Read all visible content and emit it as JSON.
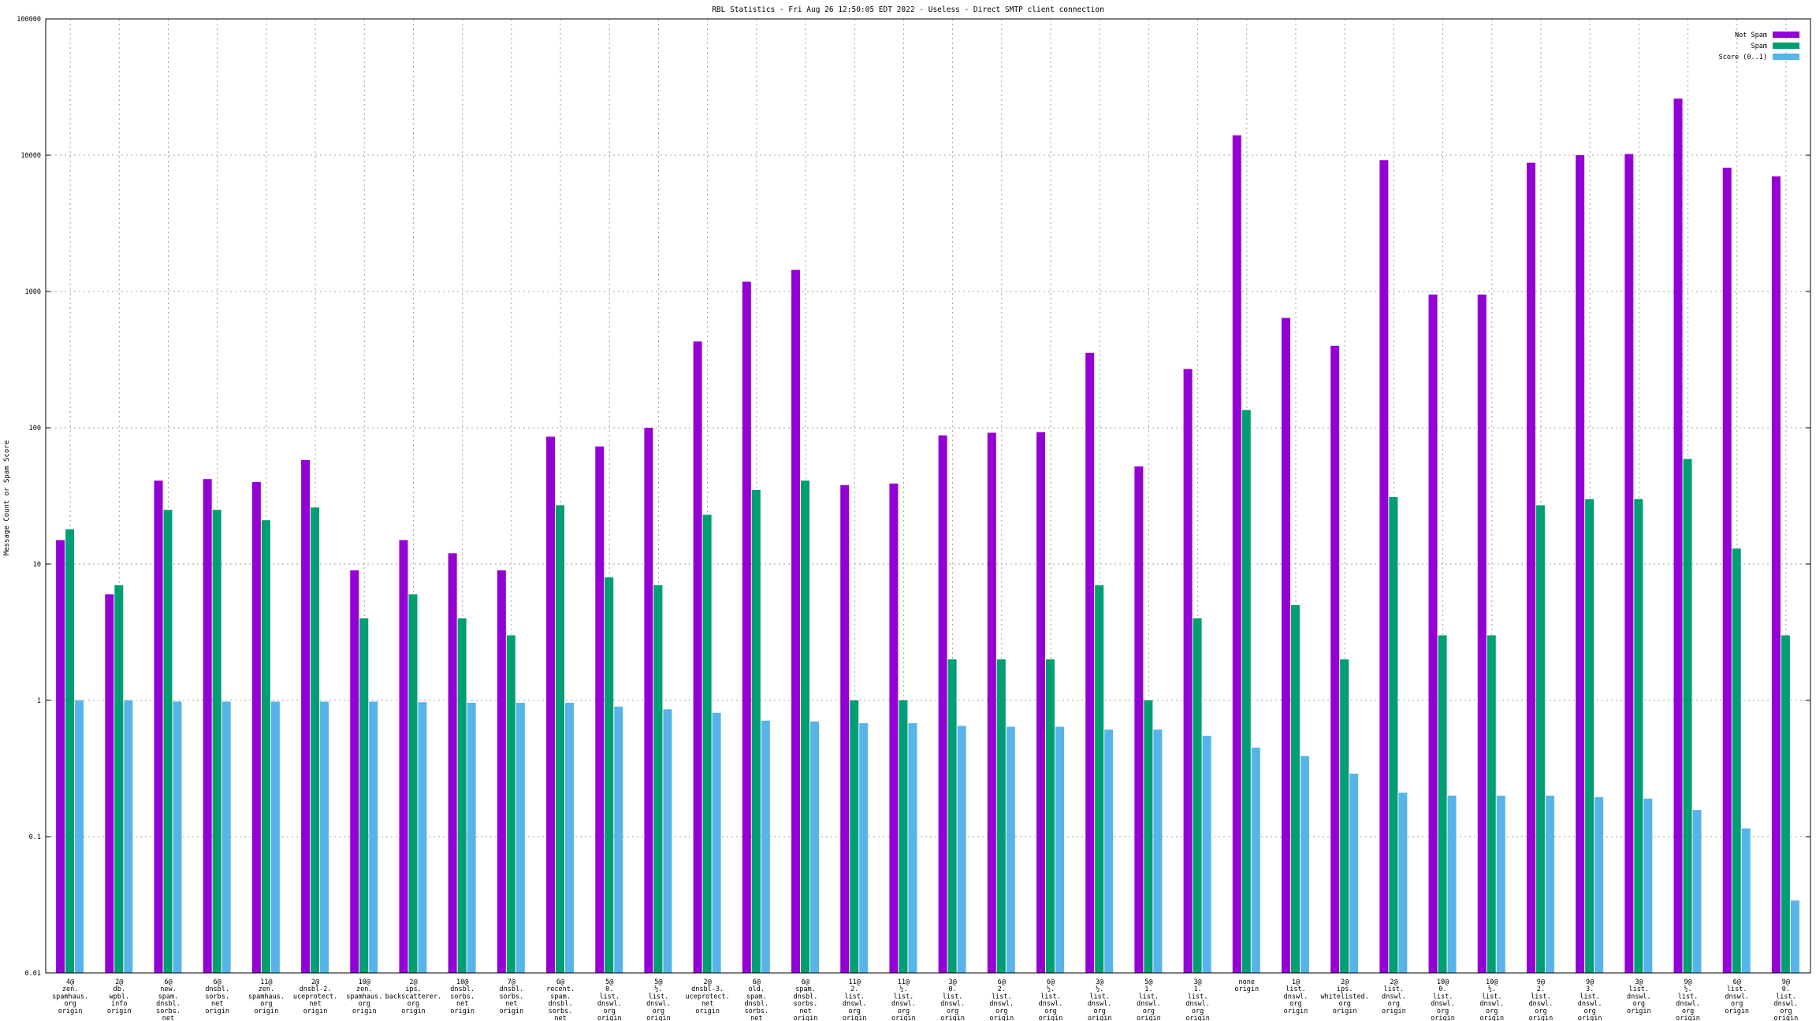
{
  "chart_data": {
    "type": "bar",
    "title": "RBL Statistics - Fri Aug 26 12:50:05 EDT 2022 - Useless - Direct SMTP client connection",
    "xlabel": "",
    "ylabel": "Message Count or Spam Score",
    "yscale": "log",
    "ylim": [
      0.01,
      100000
    ],
    "yticks": [
      "0.01",
      "0.1",
      "1",
      "10",
      "100",
      "1000",
      "10000",
      "100000"
    ],
    "grid": true,
    "legend_position": "top-right",
    "categories": [
      [
        "4@",
        "zen.",
        "spamhaus.",
        "org",
        "origin"
      ],
      [
        "2@",
        "db.",
        "wpbl.",
        "info",
        "origin"
      ],
      [
        "6@",
        "new.",
        "spam.",
        "dnsbl.",
        "sorbs.",
        "net",
        "origin"
      ],
      [
        "6@",
        "dnsbl.",
        "sorbs.",
        "net",
        "origin"
      ],
      [
        "11@",
        "zen.",
        "spamhaus.",
        "org",
        "origin"
      ],
      [
        "2@",
        "dnsbl-2.",
        "uceprotect.",
        "net",
        "origin"
      ],
      [
        "10@",
        "zen.",
        "spamhaus.",
        "org",
        "origin"
      ],
      [
        "2@",
        "ips.",
        "backscatterer.",
        "org",
        "origin"
      ],
      [
        "10@",
        "dnsbl.",
        "sorbs.",
        "net",
        "origin"
      ],
      [
        "7@",
        "dnsbl.",
        "sorbs.",
        "net",
        "origin"
      ],
      [
        "6@",
        "recent.",
        "spam.",
        "dnsbl.",
        "sorbs.",
        "net",
        "origin"
      ],
      [
        "5@",
        "0.",
        "list.",
        "dnswl.",
        "org",
        "origin"
      ],
      [
        "5@",
        "½.",
        "list.",
        "dnswl.",
        "org",
        "origin"
      ],
      [
        "2@",
        "dnsbl-3.",
        "uceprotect.",
        "net",
        "origin"
      ],
      [
        "6@",
        "old.",
        "spam.",
        "dnsbl.",
        "sorbs.",
        "net",
        "origin"
      ],
      [
        "6@",
        "spam.",
        "dnsbl.",
        "sorbs.",
        "net",
        "origin"
      ],
      [
        "11@",
        "2.",
        "list.",
        "dnswl.",
        "org",
        "origin"
      ],
      [
        "11@",
        "½.",
        "list.",
        "dnswl.",
        "org",
        "origin"
      ],
      [
        "3@",
        "0.",
        "list.",
        "dnswl.",
        "org",
        "origin"
      ],
      [
        "6@",
        "2.",
        "list.",
        "dnswl.",
        "org",
        "origin"
      ],
      [
        "6@",
        "½.",
        "list.",
        "dnswl.",
        "org",
        "origin"
      ],
      [
        "3@",
        "½.",
        "list.",
        "dnswl.",
        "org",
        "origin"
      ],
      [
        "5@",
        "1.",
        "list.",
        "dnswl.",
        "org",
        "origin"
      ],
      [
        "3@",
        "1.",
        "list.",
        "dnswl.",
        "org",
        "origin"
      ],
      [
        "none",
        "origin"
      ],
      [
        "1@",
        "list.",
        "dnswl.",
        "org",
        "origin"
      ],
      [
        "2@",
        "ips.",
        "whitelisted.",
        "org",
        "origin"
      ],
      [
        "2@",
        "list.",
        "dnswl.",
        "org",
        "origin"
      ],
      [
        "10@",
        "0.",
        "list.",
        "dnswl.",
        "org",
        "origin"
      ],
      [
        "10@",
        "½.",
        "list.",
        "dnswl.",
        "org",
        "origin"
      ],
      [
        "9@",
        "2.",
        "list.",
        "dnswl.",
        "org",
        "origin"
      ],
      [
        "9@",
        "3.",
        "list.",
        "dnswl.",
        "org",
        "origin"
      ],
      [
        "3@",
        "list.",
        "dnswl.",
        "org",
        "origin"
      ],
      [
        "9@",
        "½.",
        "list.",
        "dnswl.",
        "org",
        "origin"
      ],
      [
        "6@",
        "list.",
        "dnswl.",
        "org",
        "origin"
      ],
      [
        "9@",
        "0.",
        "list.",
        "dnswl.",
        "org",
        "origin"
      ]
    ],
    "series": [
      {
        "name": "Not Spam",
        "color": "#9400d3",
        "values": [
          15,
          6,
          41,
          42,
          40,
          58,
          9,
          15,
          12,
          9,
          86,
          73,
          100,
          430,
          1180,
          1440,
          38,
          39,
          88,
          92,
          93,
          355,
          52,
          270,
          14000,
          640,
          400,
          9200,
          950,
          950,
          8800,
          10000,
          10200,
          26000,
          8100,
          7000
        ]
      },
      {
        "name": "Spam",
        "color": "#009e73",
        "values": [
          18,
          7,
          25,
          25,
          21,
          26,
          4,
          6,
          4,
          3,
          27,
          8,
          7,
          23,
          35,
          41,
          1,
          1,
          2,
          2,
          2,
          7,
          1,
          4,
          135,
          5,
          2,
          31,
          3,
          3,
          27,
          30,
          30,
          59,
          13,
          3
        ]
      },
      {
        "name": "Score (0..1)",
        "color": "#56b4e9",
        "values": [
          1.0,
          1.0,
          0.98,
          0.98,
          0.98,
          0.98,
          0.98,
          0.97,
          0.96,
          0.96,
          0.96,
          0.9,
          0.86,
          0.81,
          0.71,
          0.7,
          0.68,
          0.68,
          0.65,
          0.64,
          0.64,
          0.61,
          0.61,
          0.55,
          0.45,
          0.39,
          0.29,
          0.21,
          0.2,
          0.2,
          0.2,
          0.195,
          0.19,
          0.157,
          0.115,
          0.034
        ]
      }
    ]
  }
}
